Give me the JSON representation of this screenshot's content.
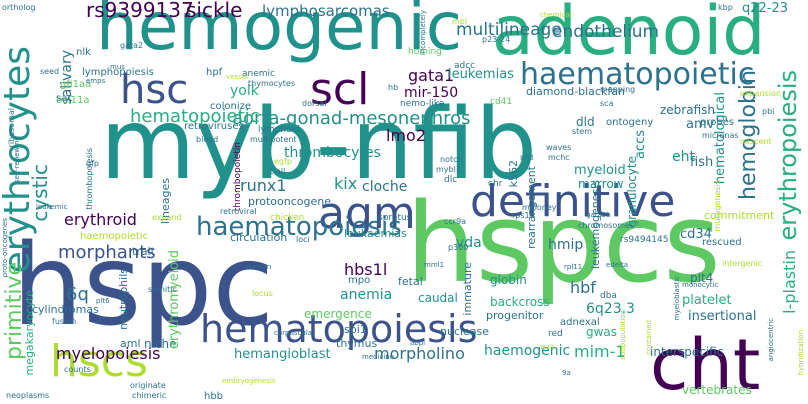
{
  "palette": {
    "dark_purple": "#440154",
    "indigo": "#3b528b",
    "blue": "#2c728e",
    "teal": "#21918c",
    "green": "#28ae80",
    "light_green": "#5ec962",
    "lime": "#addc30",
    "yellow": "#fde725",
    "background": "#ffffff"
  },
  "words": [
    {
      "text": "hemogenic",
      "color": "teal"
    },
    {
      "text": "adenoid",
      "color": "green"
    },
    {
      "text": "myb-nfib",
      "color": "teal"
    },
    {
      "text": "hspc",
      "color": "indigo"
    },
    {
      "text": "hspcs",
      "color": "light_green"
    },
    {
      "text": "definitive",
      "color": "indigo"
    },
    {
      "text": "hematopoiesis",
      "color": "indigo"
    },
    {
      "text": "haematopoietic",
      "color": "blue"
    },
    {
      "text": "erythrocytes",
      "color": "teal"
    },
    {
      "text": "hsc",
      "color": "indigo"
    },
    {
      "text": "scl",
      "color": "dark_purple"
    },
    {
      "text": "agm",
      "color": "indigo"
    },
    {
      "text": "hscs",
      "color": "lime"
    },
    {
      "text": "cht",
      "color": "dark_purple"
    },
    {
      "text": "haematopoiesis",
      "color": "blue"
    },
    {
      "text": "hemoglobin",
      "color": "blue"
    },
    {
      "text": "aorta-gonad-mesonephros",
      "color": "teal"
    },
    {
      "text": "hematopoietic",
      "color": "green"
    },
    {
      "text": "erythropoiesis",
      "color": "green"
    },
    {
      "text": "rs9399137",
      "color": "dark_purple"
    },
    {
      "text": "sickle",
      "color": "dark_purple"
    },
    {
      "text": "lymphosarcomas",
      "color": "blue"
    },
    {
      "text": "multilineage",
      "color": "blue"
    },
    {
      "text": "endothelium",
      "color": "blue"
    },
    {
      "text": "q22-23",
      "color": "teal"
    },
    {
      "text": "kbp",
      "color": "blue"
    },
    {
      "text": "ortholog",
      "color": "blue"
    },
    {
      "text": "salivary",
      "color": "blue"
    },
    {
      "text": "gata1",
      "color": "dark_purple"
    },
    {
      "text": "leukemias",
      "color": "teal"
    },
    {
      "text": "mir-150",
      "color": "dark_purple"
    },
    {
      "text": "diamond-blackfan",
      "color": "blue"
    },
    {
      "text": "cd41",
      "color": "light_green"
    },
    {
      "text": "zebrafish",
      "color": "blue"
    },
    {
      "text": "amv",
      "color": "blue"
    },
    {
      "text": "colonize",
      "color": "blue"
    },
    {
      "text": "yolk",
      "color": "green"
    },
    {
      "text": "retroviruses",
      "color": "blue"
    },
    {
      "text": "lmo2",
      "color": "dark_purple"
    },
    {
      "text": "dld",
      "color": "blue"
    },
    {
      "text": "ontogeny",
      "color": "blue"
    },
    {
      "text": "eht",
      "color": "teal"
    },
    {
      "text": "accs",
      "color": "teal"
    },
    {
      "text": "hematological",
      "color": "teal"
    },
    {
      "text": "fish",
      "color": "blue"
    },
    {
      "text": "thrombocytes",
      "color": "teal"
    },
    {
      "text": "myeloid",
      "color": "teal"
    },
    {
      "text": "marrow",
      "color": "teal"
    },
    {
      "text": "granulocyte",
      "color": "teal"
    },
    {
      "text": "erythroid",
      "color": "dark_purple"
    },
    {
      "text": "runx1",
      "color": "blue"
    },
    {
      "text": "kix",
      "color": "teal"
    },
    {
      "text": "cloche",
      "color": "blue"
    },
    {
      "text": "vda",
      "color": "teal"
    },
    {
      "text": "cystic",
      "color": "teal"
    },
    {
      "text": "primitive",
      "color": "light_green"
    },
    {
      "text": "morphants",
      "color": "indigo"
    },
    {
      "text": "hbs1l",
      "color": "dark_purple"
    },
    {
      "text": "anemia",
      "color": "teal"
    },
    {
      "text": "6q",
      "color": "blue"
    },
    {
      "text": "leukaemias",
      "color": "teal"
    },
    {
      "text": "hmip",
      "color": "blue"
    },
    {
      "text": "hbf",
      "color": "blue"
    },
    {
      "text": "platelet",
      "color": "green"
    },
    {
      "text": "insertional",
      "color": "blue"
    },
    {
      "text": "rescued",
      "color": "blue"
    },
    {
      "text": "cd34",
      "color": "blue"
    },
    {
      "text": "plt4",
      "color": "blue"
    },
    {
      "text": "myelopoiesis",
      "color": "dark_purple"
    },
    {
      "text": "niche",
      "color": "blue"
    },
    {
      "text": "hemangioblast",
      "color": "teal"
    },
    {
      "text": "morpholino",
      "color": "blue"
    },
    {
      "text": "haemogenic",
      "color": "teal"
    },
    {
      "text": "mim-1",
      "color": "green"
    },
    {
      "text": "caudal",
      "color": "teal"
    },
    {
      "text": "backcross",
      "color": "green"
    },
    {
      "text": "6q23.3",
      "color": "teal"
    },
    {
      "text": "globin",
      "color": "teal"
    },
    {
      "text": "dba",
      "color": "blue"
    },
    {
      "text": "gwas",
      "color": "green"
    },
    {
      "text": "adnexal",
      "color": "blue"
    },
    {
      "text": "red",
      "color": "blue"
    },
    {
      "text": "interspecific",
      "color": "blue"
    },
    {
      "text": "l-plastin",
      "color": "green"
    },
    {
      "text": "vertebrates",
      "color": "light_green"
    },
    {
      "text": "spi1",
      "color": "blue"
    },
    {
      "text": "thymus",
      "color": "blue"
    },
    {
      "text": "nuclease",
      "color": "blue"
    },
    {
      "text": "mpo",
      "color": "blue"
    },
    {
      "text": "fetal",
      "color": "blue"
    },
    {
      "text": "immature",
      "color": "blue"
    },
    {
      "text": "progenitor",
      "color": "blue"
    },
    {
      "text": "aml",
      "color": "blue"
    },
    {
      "text": "megakaryocyte",
      "color": "green"
    },
    {
      "text": "cylindromas",
      "color": "blue"
    },
    {
      "text": "neutrophils",
      "color": "blue"
    },
    {
      "text": "hpf",
      "color": "blue"
    },
    {
      "text": "lineages",
      "color": "blue"
    },
    {
      "text": "protooncogene",
      "color": "blue"
    },
    {
      "text": "chicken",
      "color": "lime"
    },
    {
      "text": "circulation",
      "color": "blue"
    },
    {
      "text": "trait",
      "color": "blue"
    },
    {
      "text": "erythromyeloid",
      "color": "light_green"
    },
    {
      "text": "emergence",
      "color": "light_green"
    },
    {
      "text": "haemopoietic",
      "color": "lime"
    },
    {
      "text": "proto-oncogenes",
      "color": "blue"
    },
    {
      "text": "lymphopoiesis",
      "color": "blue"
    },
    {
      "text": "gfi1aa",
      "color": "light_green"
    },
    {
      "text": "bcl11a",
      "color": "light_green"
    },
    {
      "text": "sac",
      "color": "blue"
    },
    {
      "text": "anemic",
      "color": "blue"
    },
    {
      "text": "thymocytes",
      "color": "blue"
    },
    {
      "text": "homing",
      "color": "light_green"
    },
    {
      "text": "adcc",
      "color": "blue"
    },
    {
      "text": "nlk",
      "color": "blue"
    },
    {
      "text": "seed",
      "color": "blue"
    },
    {
      "text": "gata2",
      "color": "blue"
    },
    {
      "text": "p23-24",
      "color": "blue"
    },
    {
      "text": "mapping",
      "color": "blue"
    },
    {
      "text": "expansion",
      "color": "lime"
    },
    {
      "text": "thrombopoiesis",
      "color": "blue"
    },
    {
      "text": "thrombopoietin",
      "color": "dark_purple"
    },
    {
      "text": "nemo-like",
      "color": "blue"
    },
    {
      "text": "lymphoid",
      "color": "blue"
    },
    {
      "text": "dorsal",
      "color": "blue"
    },
    {
      "text": "t-all",
      "color": "blue"
    },
    {
      "text": "notch",
      "color": "blue"
    },
    {
      "text": "nrd",
      "color": "blue"
    },
    {
      "text": "mchc",
      "color": "blue"
    },
    {
      "text": "chr",
      "color": "blue"
    },
    {
      "text": "waves",
      "color": "blue"
    },
    {
      "text": "mybl1",
      "color": "blue"
    },
    {
      "text": "k562",
      "color": "blue"
    },
    {
      "text": "dlc",
      "color": "blue"
    },
    {
      "text": "probes",
      "color": "blue"
    },
    {
      "text": "stem",
      "color": "blue"
    },
    {
      "text": "sca",
      "color": "blue"
    },
    {
      "text": "micronas",
      "color": "blue"
    },
    {
      "text": "nascent",
      "color": "lime"
    },
    {
      "text": "pbi",
      "color": "blue"
    },
    {
      "text": "ribosomal",
      "color": "blue"
    },
    {
      "text": "self-renewing",
      "color": "blue"
    },
    {
      "text": "leukemic",
      "color": "blue"
    },
    {
      "text": "gfp",
      "color": "blue"
    },
    {
      "text": "egfp",
      "color": "lime"
    },
    {
      "text": "mpl",
      "color": "lime"
    },
    {
      "text": "retroviral",
      "color": "blue"
    },
    {
      "text": "expand",
      "color": "lime"
    },
    {
      "text": "rearrangement",
      "color": "blue"
    },
    {
      "text": "leukemogenesis",
      "color": "blue"
    },
    {
      "text": "commitment",
      "color": "lime"
    },
    {
      "text": "mutagenesis",
      "color": "lime"
    },
    {
      "text": "ccr9a",
      "color": "blue"
    },
    {
      "text": "rps19",
      "color": "blue"
    },
    {
      "text": "moloney",
      "color": "blue"
    },
    {
      "text": "gata2b",
      "color": "blue"
    },
    {
      "text": "spretus",
      "color": "blue"
    },
    {
      "text": "chromosomes",
      "color": "blue"
    },
    {
      "text": "rs9494145",
      "color": "blue"
    },
    {
      "text": "intergenic",
      "color": "lime"
    },
    {
      "text": "loci",
      "color": "blue"
    },
    {
      "text": "abelson",
      "color": "blue"
    },
    {
      "text": "mml1",
      "color": "blue"
    },
    {
      "text": "rpl11",
      "color": "blue"
    },
    {
      "text": "edelta",
      "color": "blue"
    },
    {
      "text": "p300",
      "color": "blue"
    },
    {
      "text": "monocytic",
      "color": "blue"
    },
    {
      "text": "somitic",
      "color": "blue"
    },
    {
      "text": "locus",
      "color": "lime"
    },
    {
      "text": "plt6",
      "color": "blue"
    },
    {
      "text": "fusion",
      "color": "blue"
    },
    {
      "text": "counts",
      "color": "blue"
    },
    {
      "text": "originate",
      "color": "blue"
    },
    {
      "text": "neoplasms",
      "color": "blue"
    },
    {
      "text": "chimeric",
      "color": "blue"
    },
    {
      "text": "hbb",
      "color": "blue"
    },
    {
      "text": "embryogenesis",
      "color": "lime"
    },
    {
      "text": "corpuscular",
      "color": "blue"
    },
    {
      "text": "abpl",
      "color": "blue"
    },
    {
      "text": "wall",
      "color": "lime"
    },
    {
      "text": "9a",
      "color": "blue"
    },
    {
      "text": "contained",
      "color": "lime"
    },
    {
      "text": "medicine",
      "color": "blue"
    },
    {
      "text": "hybridization",
      "color": "lime"
    },
    {
      "text": "hb",
      "color": "blue"
    },
    {
      "text": "mus",
      "color": "blue"
    },
    {
      "text": "multipotent",
      "color": "blue"
    },
    {
      "text": "blood",
      "color": "blue"
    },
    {
      "text": "vessel",
      "color": "lime"
    },
    {
      "text": "emps",
      "color": "blue"
    },
    {
      "text": "chemical",
      "color": "lime"
    },
    {
      "text": "incompletely",
      "color": "blue"
    },
    {
      "text": "angiocentric",
      "color": "blue"
    },
    {
      "text": "myeloblastic",
      "color": "blue"
    },
    {
      "text": "subpopulation",
      "color": "lime"
    }
  ]
}
